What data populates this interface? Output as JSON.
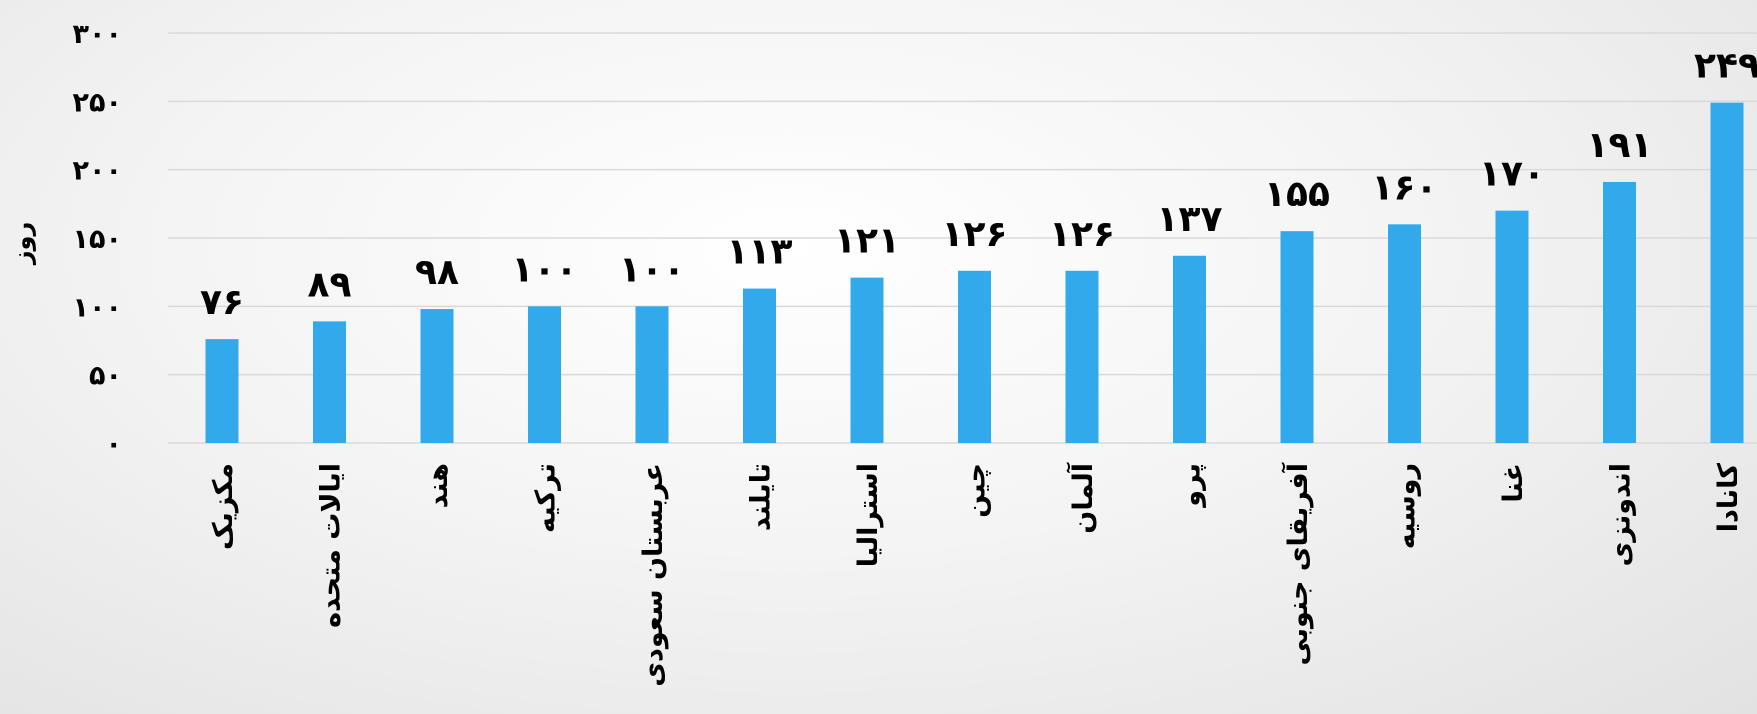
{
  "chart_data": {
    "type": "bar",
    "categories": [
      "مکزیک",
      "ایالات متحده",
      "هند",
      "ترکیه",
      "عربستان سعودی",
      "تایلند",
      "استرالیا",
      "چین",
      "آلمان",
      "پرو",
      "آفریقای جنوبی",
      "روسیه",
      "غنا",
      "اندونزی",
      "کانادا"
    ],
    "values": [
      76,
      89,
      98,
      100,
      100,
      113,
      121,
      126,
      126,
      137,
      155,
      160,
      170,
      191,
      249
    ],
    "value_labels": [
      "۷۶",
      "۸۹",
      "۹۸",
      "۱۰۰",
      "۱۰۰",
      "۱۱۳",
      "۱۲۱",
      "۱۲۶",
      "۱۲۶",
      "۱۳۷",
      "۱۵۵",
      "۱۶۰",
      "۱۷۰",
      "۱۹۱",
      "۲۴۹"
    ],
    "ylabel": "روز",
    "ylim": [
      0,
      300
    ],
    "yticks": [
      0,
      50,
      100,
      150,
      200,
      250,
      300
    ],
    "ytick_labels": [
      "۰",
      "۵۰",
      "۱۰۰",
      "۱۵۰",
      "۲۰۰",
      "۲۵۰",
      "۳۰۰"
    ],
    "grid": true,
    "legend": "none",
    "colors": {
      "bar": "#31a9ea",
      "grid": "#d9d9d9"
    }
  }
}
